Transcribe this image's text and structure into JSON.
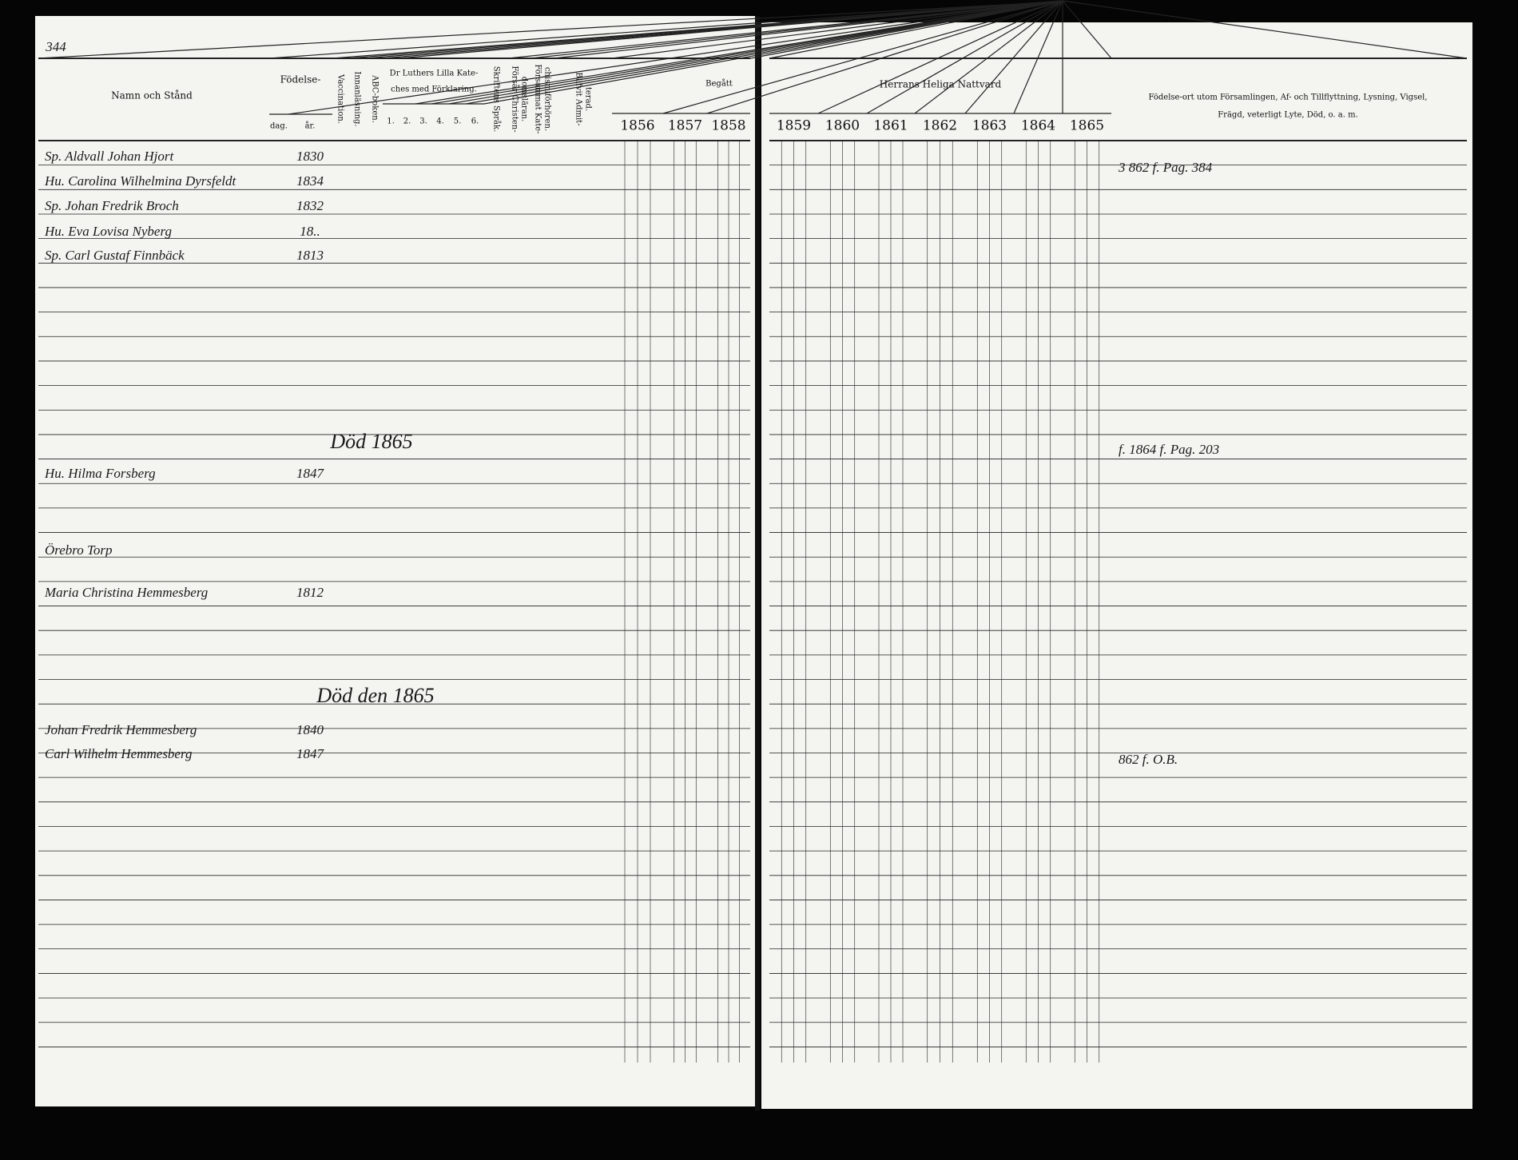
{
  "page_number": "344",
  "left_page": {
    "header": {
      "name": "Namn och Stånd",
      "birth": "Födelse-",
      "birth_day": "dag.",
      "birth_year": "år.",
      "vaccination": "Vaccination.",
      "reading": "Innanläsning.",
      "abc": "ABC-boken.",
      "catechism": [
        "Dr Luthers Lilla Kate-",
        "ches med Förklaring."
      ],
      "catechism_parts": [
        "1.",
        "2.",
        "3.",
        "4.",
        "5.",
        "6."
      ],
      "scripture": "Skriftens Språk.",
      "doctrine": [
        "Försår Christen-",
        "domsläran."
      ],
      "examinations": [
        "Försammat Kate-",
        "chismiförhören."
      ],
      "admitted": [
        "Blifvit Admit-",
        "terad."
      ],
      "communion": "Begått",
      "years": [
        "1856",
        "1857",
        "1858"
      ]
    },
    "rows": [
      {
        "name": "Sp. Aldvall Johan Hjort",
        "year": "1830"
      },
      {
        "name": "Hu. Carolina Wilhelmina Dyrsfeldt",
        "year": "1834"
      },
      {
        "name": "Sp. Johan Fredrik Broch",
        "year": "1832"
      },
      {
        "name": "Hu. Eva Lovisa Nyberg",
        "year": "18.."
      },
      {
        "name": "Sp. Carl Gustaf Finnbäck",
        "year": "1813"
      },
      {
        "name": "Hu. Hilma Forsberg",
        "year": "1847"
      },
      {
        "name": "Örebro Torp",
        "year": ""
      },
      {
        "name": "Maria Christina Hemmesberg",
        "year": "1812"
      },
      {
        "name": "Johan Fredrik Hemmesberg",
        "year": "1840"
      },
      {
        "name": "Carl Wilhelm Hemmesberg",
        "year": "1847"
      }
    ],
    "annotations": [
      "Död 1865",
      "Död den 1865"
    ]
  },
  "right_page": {
    "header": {
      "title": "Herrans Heliga Nattvard",
      "years": [
        "1859",
        "1860",
        "1861",
        "1862",
        "1863",
        "1864",
        "1865"
      ],
      "remarks": [
        "Födelse-ort utom Församlingen, Af- och Tillflyttning, Lysning, Vigsel,",
        "Frägd, veterligt Lyte, Död, o. a. m."
      ]
    },
    "remarks": [
      "3 862 f. Pag. 384",
      "f. 1864 f. Pag. 203",
      "862 f. O.B."
    ]
  }
}
